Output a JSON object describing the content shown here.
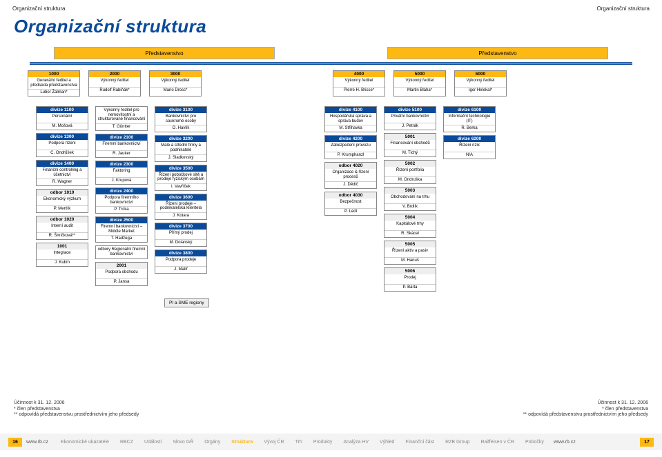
{
  "header": {
    "left": "Organizační struktura",
    "right": "Organizační struktura"
  },
  "title": "Organizační struktura",
  "boards": {
    "left": "Představenstvo",
    "right": "Představenstvo"
  },
  "top": [
    {
      "code": "1000",
      "role": "Generální ředitel a předseda představenstva",
      "name": "Lubor Žalman*"
    },
    {
      "code": "2000",
      "role": "Výkonný ředitel",
      "name": "Rudolf Rabiňák*"
    },
    {
      "code": "3000",
      "role": "Výkonný ředitel",
      "name": "Mario Drosc*"
    },
    {
      "code": "4000",
      "role": "Výkonný ředitel",
      "name": "Pierre H. Brisse*"
    },
    {
      "code": "5000",
      "role": "Výkonný ředitel",
      "name": "Martin Bláha*"
    },
    {
      "code": "6000",
      "role": "Výkonný ředitel",
      "name": "Igor Helekal*"
    }
  ],
  "col1": [
    {
      "code": "divize 1100",
      "role": "Personální",
      "name": "M. Mošová",
      "cls": "blue"
    },
    {
      "code": "divize 1300",
      "role": "Podpora řízení",
      "name": "C. Ondrůšek",
      "cls": "blue"
    },
    {
      "code": "divize 1400",
      "role": "Finanční controlling a účetnictví",
      "name": "R. Wagner",
      "cls": "blue"
    },
    {
      "code": "odbor 1010",
      "role": "Ekonomický výzkum",
      "name": "P. Mertlík",
      "cls": ""
    },
    {
      "code": "odbor 1020",
      "role": "Interní audit",
      "name": "R. Šmíčková**",
      "cls": ""
    },
    {
      "code": "1001",
      "role": "Integrace",
      "name": "J. Kubín",
      "cls": ""
    }
  ],
  "col2": [
    {
      "code": "",
      "role": "Výkonný ředitel pro nemovitostní a strukturované financování",
      "name": "T. Güntter",
      "cls": "yellow"
    },
    {
      "code": "divize 2100",
      "role": "Firemní bankovnictví",
      "name": "R. Jauker",
      "cls": "blue"
    },
    {
      "code": "divize 2300",
      "role": "Faktoring",
      "name": "J. Krupová",
      "cls": "blue"
    },
    {
      "code": "divize 2400",
      "role": "Podpora firemního bankovnictví",
      "name": "P. Trcka",
      "cls": "blue"
    },
    {
      "code": "divize 2500",
      "role": "Firemní bankovnictví – Middle Market",
      "name": "T. Hadžega",
      "cls": "blue"
    },
    {
      "code": "",
      "role": "odbory Regionální firemní bankovnictví",
      "name": "",
      "cls": ""
    },
    {
      "code": "2001",
      "role": "Podpora obchodu",
      "name": "P. Jansa",
      "cls": ""
    }
  ],
  "col3": [
    {
      "code": "divize 3100",
      "role": "Bankovnictví pro soukromé osoby",
      "name": "O. Havlík",
      "cls": "blue"
    },
    {
      "code": "divize 3200",
      "role": "Malé a střední firmy a podnikatelé",
      "name": "J. Sladkovský",
      "cls": "blue"
    },
    {
      "code": "divize 3500",
      "role": "Řízení pobočkové sítě a prodeje fyzickým osobám",
      "name": "I. Vavříček",
      "cls": "blue"
    },
    {
      "code": "divize 3600",
      "role": "Řízení prodeje – podnikatelská klientela",
      "name": "J. Kotara",
      "cls": "blue"
    },
    {
      "code": "divize 3700",
      "role": "Přímý prodej",
      "name": "M. Dolanský",
      "cls": "blue"
    },
    {
      "code": "divize 3800",
      "role": "Podpora prodeje",
      "name": "J. Malíř",
      "cls": "blue"
    }
  ],
  "col4": [
    {
      "code": "divize 4100",
      "role": "Hospodářská správa a správa budov",
      "name": "M. Střihavka",
      "cls": "blue"
    },
    {
      "code": "divize 4200",
      "role": "Zabezpečení provozu",
      "name": "P. Krumphanzl",
      "cls": "blue"
    },
    {
      "code": "odbor 4020",
      "role": "Organizace & řízení procesů",
      "name": "J. Dědič",
      "cls": ""
    },
    {
      "code": "odbor 4030",
      "role": "Bezpečnost",
      "name": "P. Lédl",
      "cls": ""
    }
  ],
  "col5": [
    {
      "code": "divize 5100",
      "role": "Privátní bankovnictví",
      "name": "J. Petrák",
      "cls": "blue"
    },
    {
      "code": "5001",
      "role": "Financování obchodů",
      "name": "M. Tichý",
      "cls": ""
    },
    {
      "code": "5002",
      "role": "Řízení portfolia",
      "name": "M. Ondruška",
      "cls": ""
    },
    {
      "code": "5003",
      "role": "Obchodování na trhu",
      "name": "V. Brdlík",
      "cls": ""
    },
    {
      "code": "5004",
      "role": "Kapitálové trhy",
      "name": "R. Skácel",
      "cls": ""
    },
    {
      "code": "5005",
      "role": "Řízení aktiv a pasiv",
      "name": "M. Hanuš",
      "cls": ""
    },
    {
      "code": "5006",
      "role": "Prodej",
      "name": "P. Bárta",
      "cls": ""
    }
  ],
  "col6": [
    {
      "code": "divize 6100",
      "role": "Informační technologie (IT)",
      "name": "R. Berka",
      "cls": "blue"
    },
    {
      "code": "divize 6200",
      "role": "Řízení rizik",
      "name": "N/A",
      "cls": "blue"
    }
  ],
  "pism": "PI a SME regiony",
  "notes": {
    "l1": "Účinnost k 31. 12. 2006",
    "l2": "* člen představenstva",
    "l3": "** odpovídá představenstvu prostřednictvím jeho předsedy"
  },
  "bottom": {
    "pgL": "16",
    "pgR": "17",
    "siteL": "www.rb.cz",
    "siteR": "www.rb.cz",
    "links": [
      "Ekonomické ukazatele",
      "RBCZ",
      "Události",
      "Slovo GŘ",
      "Orgány",
      "Struktura",
      "Vývoj ČR",
      "Trh",
      "Produkty",
      "Analýza HV",
      "Výhled",
      "Finanční část",
      "RZB Group",
      "Raiffeisen v ČR",
      "Pobočky"
    ],
    "activeIndex": 5
  }
}
